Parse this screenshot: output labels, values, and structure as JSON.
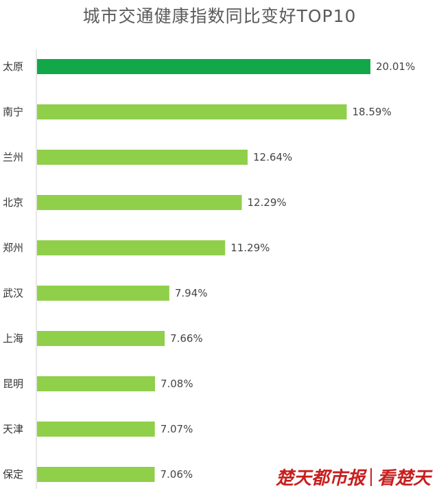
{
  "chart_data": {
    "type": "bar",
    "orientation": "horizontal",
    "title": "城市交通健康指数同比变好TOP10",
    "categories": [
      "太原",
      "南宁",
      "兰州",
      "北京",
      "郑州",
      "武汉",
      "上海",
      "昆明",
      "天津",
      "保定"
    ],
    "values": [
      20.01,
      18.59,
      12.64,
      12.29,
      11.29,
      7.94,
      7.66,
      7.08,
      7.07,
      7.06
    ],
    "value_labels": [
      "20.01%",
      "18.59%",
      "12.64%",
      "12.29%",
      "11.29%",
      "7.94%",
      "7.66%",
      "7.08%",
      "7.07%",
      "7.06%"
    ],
    "xlim": [
      0,
      20.01
    ],
    "grid": false,
    "colors": {
      "highlight": "#12a84a",
      "bar": "#8fcf4a"
    }
  },
  "watermark": {
    "left": "楚天都市报",
    "right": "看楚天"
  }
}
